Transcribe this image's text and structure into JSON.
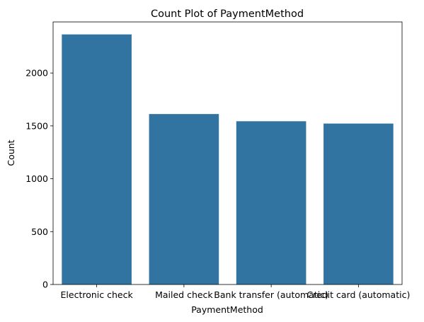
{
  "chart_data": {
    "type": "bar",
    "title": "Count Plot of PaymentMethod",
    "xlabel": "PaymentMethod",
    "ylabel": "Count",
    "categories": [
      "Electronic check",
      "Mailed check",
      "Bank transfer (automatic)",
      "Credit card (automatic)"
    ],
    "values": [
      2365,
      1612,
      1544,
      1522
    ],
    "ylim": [
      0,
      2483
    ],
    "yticks": [
      0,
      500,
      1000,
      1500,
      2000
    ],
    "grid": false,
    "bar_color": "#3274a1"
  }
}
